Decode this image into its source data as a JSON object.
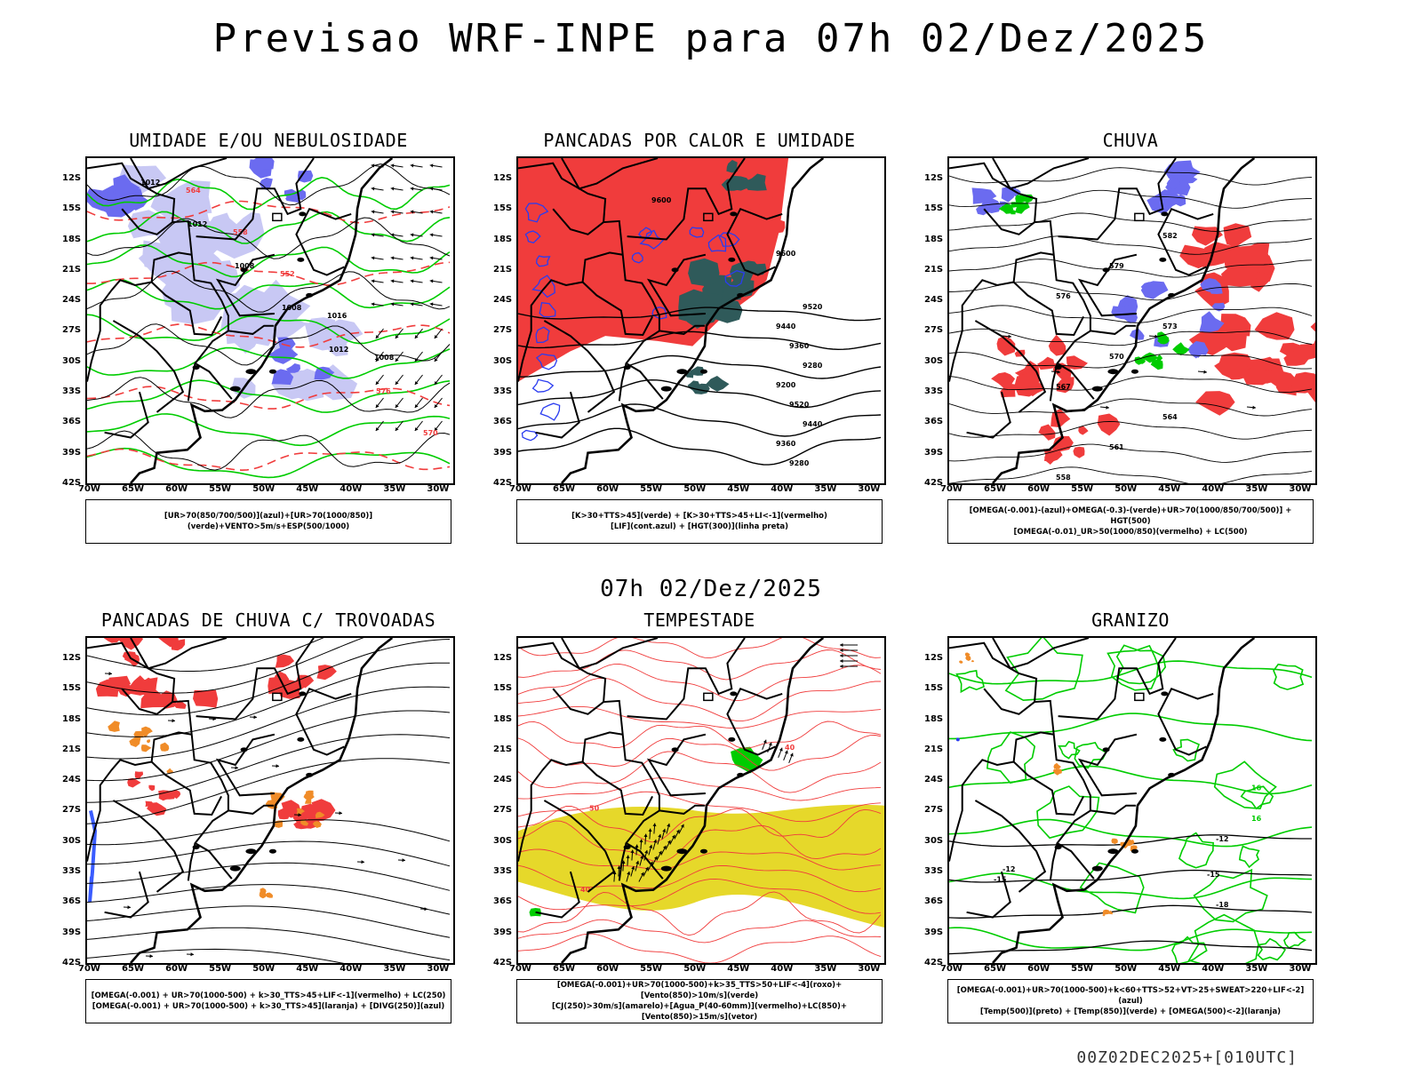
{
  "title": "Previsao WRF-INPE  para 07h 02/Dez/2025",
  "middle_date": "07h 02/Dez/2025",
  "footer": "00Z02DEC2025+[010UTC]",
  "lat_ticks": [
    "12S",
    "15S",
    "18S",
    "21S",
    "24S",
    "27S",
    "30S",
    "33S",
    "36S",
    "39S",
    "42S"
  ],
  "lon_ticks": [
    "70W",
    "65W",
    "60W",
    "55W",
    "50W",
    "45W",
    "40W",
    "35W",
    "30W"
  ],
  "colors": {
    "blue": "#6b6bf0",
    "light_blue": "#c8c8f4",
    "green": "#00cc00",
    "red": "#f03c3c",
    "dark_teal": "#2f5a5a",
    "orange": "#f08c28",
    "yellow": "#e6d82a",
    "black": "#000000"
  },
  "panels": [
    {
      "title": "UMIDADE E/OU NEBULOSIDADE",
      "caption": [
        "[UR>70(850/700/500)](azul)+[UR>70(1000/850)](verde)+VENTO>5m/s+ESP(500/1000)"
      ],
      "contour_labels": [
        "1012",
        "1012",
        "1008",
        "1008",
        "1012",
        "576",
        "570",
        "564",
        "558",
        "552",
        "1016",
        "1008"
      ]
    },
    {
      "title": "PANCADAS POR CALOR E UMIDADE",
      "caption": [
        "[K>30+TTS>45](verde) + [K>30+TTS>45+LI<-1](vermelho)",
        "[LIF](cont.azul) + [HGT(300)](linha preta)"
      ],
      "contour_labels": [
        "9600",
        "9600",
        "9520",
        "9440",
        "9360",
        "9280",
        "9200",
        "9520",
        "9440",
        "9360",
        "9280"
      ]
    },
    {
      "title": "CHUVA",
      "caption": [
        "[OMEGA(-0.001)-(azul)+OMEGA(-0.3)-(verde)+UR>70(1000/850/700/500)] + HGT(500)",
        "[OMEGA(-0.01)_UR>50(1000/850)(vermelho) + LC(500)"
      ],
      "contour_labels": [
        "582",
        "579",
        "576",
        "573",
        "570",
        "567",
        "564",
        "561",
        "558"
      ]
    },
    {
      "title": "PANCADAS DE CHUVA C/ TROVOADAS",
      "caption": [
        "[OMEGA(-0.001) + UR>70(1000-500) + k>30_TTS>45+LIF<-1](vermelho) + LC(250)",
        "[OMEGA(-0.001) + UR>70(1000-500) + k>30_TTS>45](laranja) + [DIVG(250)](azul)"
      ],
      "contour_labels": []
    },
    {
      "title": "TEMPESTADE",
      "caption": [
        "[OMEGA(-0.001)+UR>70(1000-500)+k>35_TTS>50+LIF<-4](roxo)+[Vento(850)>10m/s](verde)",
        "[CJ(250)>30m/s](amarelo)+[Agua_P(40-60mm)](vermelho)+LC(850)+[Vento(850)>15m/s](vetor)"
      ],
      "contour_labels": [
        "50",
        "40",
        "40"
      ]
    },
    {
      "title": "GRANIZO",
      "caption": [
        "[OMEGA(-0.001)+UR>70(1000-500)+k<60+TTS>52+VT>25+SWEAT>220+LIF<-2](azul)",
        "[Temp(500)](preto) + [Temp(850)](verde) + [OMEGA(500)<-2](laranja)"
      ],
      "contour_labels": [
        "-12",
        "-15",
        "-18",
        "16",
        "16",
        "-12",
        "-15"
      ]
    }
  ]
}
